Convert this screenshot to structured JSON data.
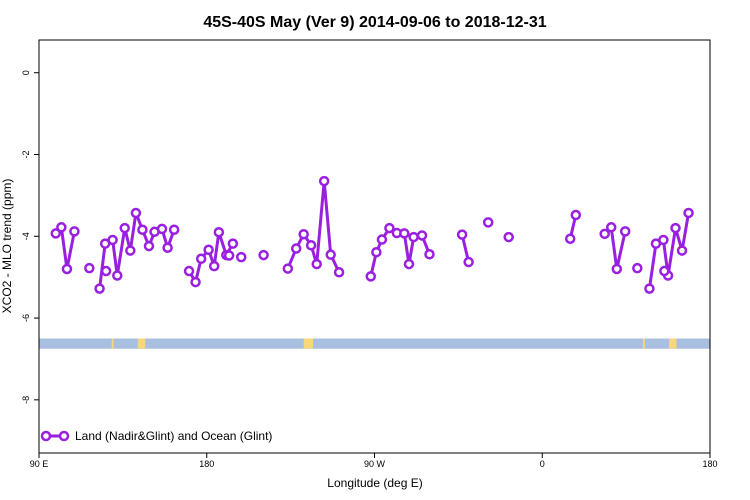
{
  "chart_data": {
    "type": "line",
    "title": "45S-40S May (Ver 9)   2014-09-06 to 2018-12-31",
    "xlabel": "Longitude (deg E)",
    "ylabel": "XCO2 - MLO trend (ppm)",
    "xlim": [
      90,
      450
    ],
    "ylim": [
      -9.3,
      0.8
    ],
    "x_ticks": [
      {
        "value": 90,
        "label": "90 E"
      },
      {
        "value": 180,
        "label": "180"
      },
      {
        "value": 270,
        "label": "90 W"
      },
      {
        "value": 360,
        "label": "0"
      },
      {
        "value": 450,
        "label": "180"
      }
    ],
    "y_ticks": [
      {
        "value": 0,
        "label": "0"
      },
      {
        "value": -2,
        "label": "-2"
      },
      {
        "value": -4,
        "label": "-4"
      },
      {
        "value": -6,
        "label": "-6"
      },
      {
        "value": -8,
        "label": "-8"
      }
    ],
    "grid": false,
    "legend_position": "bottom-left",
    "colors": {
      "series": "#9a1fe0",
      "ocean": "#a9bfdf",
      "land": "#f8d77a"
    },
    "series": [
      {
        "name": "Land (Nadir&Glint) and Ocean (Glint)",
        "segments": [
          [
            [
              99,
              -3.93
            ],
            [
              102,
              -3.78
            ],
            [
              105,
              -4.8
            ],
            [
              109,
              -3.88
            ]
          ],
          [
            [
              122.5,
              -5.28
            ],
            [
              125.5,
              -4.18
            ],
            [
              129.5,
              -4.09
            ],
            [
              132,
              -4.96
            ],
            [
              136,
              -3.8
            ],
            [
              139,
              -4.35
            ],
            [
              142,
              -3.43
            ],
            [
              145.5,
              -3.84
            ],
            [
              149,
              -4.24
            ],
            [
              152,
              -3.89
            ],
            [
              156,
              -3.82
            ],
            [
              159,
              -4.28
            ],
            [
              162.5,
              -3.84
            ]
          ],
          [
            [
              170.5,
              -4.85
            ],
            [
              174,
              -5.12
            ],
            [
              177,
              -4.55
            ],
            [
              181,
              -4.33
            ],
            [
              184,
              -4.73
            ],
            [
              186.5,
              -3.9
            ],
            [
              190.5,
              -4.46
            ],
            [
              194,
              -4.18
            ]
          ],
          [
            [
              223.5,
              -4.79
            ],
            [
              228,
              -4.3
            ],
            [
              232,
              -3.95
            ],
            [
              236,
              -4.22
            ],
            [
              239,
              -4.68
            ],
            [
              243,
              -2.65
            ],
            [
              246.5,
              -4.45
            ],
            [
              251,
              -4.88
            ]
          ],
          [
            [
              268,
              -4.98
            ],
            [
              271,
              -4.39
            ],
            [
              274,
              -4.08
            ],
            [
              278,
              -3.8
            ],
            [
              282,
              -3.92
            ],
            [
              286,
              -3.93
            ],
            [
              288.5,
              -4.68
            ],
            [
              291,
              -4.02
            ],
            [
              295.5,
              -3.98
            ],
            [
              299.5,
              -4.44
            ]
          ],
          [
            [
              317,
              -3.96
            ],
            [
              320.5,
              -4.63
            ]
          ],
          [
            [
              375,
              -4.06
            ],
            [
              378,
              -3.48
            ]
          ],
          [
            [
              393.5,
              -3.94
            ],
            [
              397,
              -3.78
            ],
            [
              400,
              -4.8
            ],
            [
              404.5,
              -3.88
            ]
          ],
          [
            [
              417.5,
              -5.28
            ],
            [
              421,
              -4.18
            ],
            [
              425,
              -4.09
            ],
            [
              427.5,
              -4.96
            ],
            [
              431.5,
              -3.8
            ],
            [
              435,
              -4.35
            ],
            [
              438.5,
              -3.43
            ]
          ]
        ],
        "singles": [
          [
            117,
            -4.78
          ],
          [
            126,
            -4.85
          ],
          [
            192,
            -4.47
          ],
          [
            198.5,
            -4.51
          ],
          [
            210.5,
            -4.46
          ],
          [
            331,
            -3.66
          ],
          [
            342,
            -4.02
          ],
          [
            411,
            -4.78
          ],
          [
            425.5,
            -4.85
          ]
        ]
      }
    ],
    "surface_band": {
      "y_top": -6.5,
      "y_bottom": -6.75,
      "base": "ocean",
      "land_spans": [
        [
          129,
          130
        ],
        [
          143,
          147
        ],
        [
          232,
          237
        ],
        [
          414,
          415
        ],
        [
          428,
          432
        ]
      ]
    }
  }
}
